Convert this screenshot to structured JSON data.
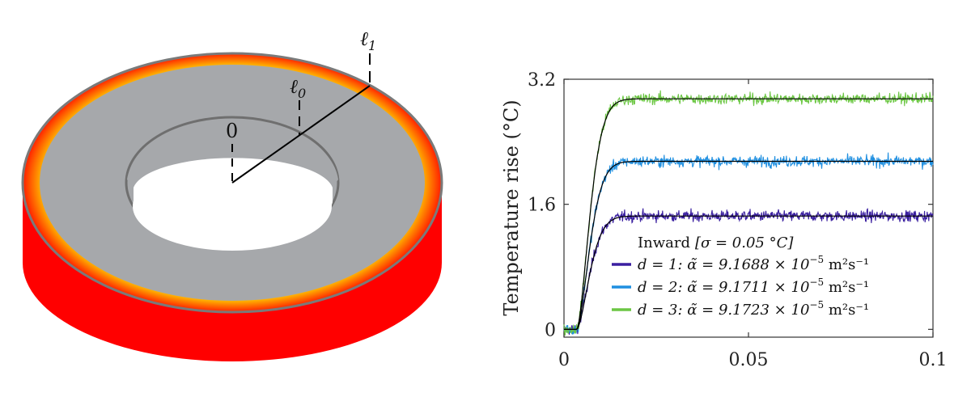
{
  "annotations": {
    "l1": "ℓ",
    "l1_sub": "1",
    "l0": "ℓ",
    "l0_sub": "0",
    "zero": "0"
  },
  "colors": {
    "d1": "#3a1fa0",
    "d2": "#1f8fe0",
    "d3": "#6cc644",
    "fit": "#000000",
    "disk_face": "#a6a8ab",
    "disk_side": "#ff0000",
    "ring_outer": "#ff5a00",
    "ring_inner": "#ffee44"
  },
  "chart_data": {
    "type": "line",
    "ylabel": "Temperature rise (°C)",
    "xlim": [
      0,
      0.1
    ],
    "ylim": [
      -0.1,
      3.2
    ],
    "xticks": [
      0,
      0.05,
      0.1
    ],
    "xtick_labels": [
      "0",
      "0.05",
      "0.1"
    ],
    "yticks": [
      0,
      1.6,
      3.2
    ],
    "ytick_labels": [
      "0",
      "1.6",
      "3.2"
    ],
    "legend": {
      "placement": "bottom-right",
      "title_prefix": "Inward",
      "title_sigma": "[σ = 0.05 °C]",
      "entries": [
        {
          "d": "d = 1:",
          "alpha": "α̃ = 9.1688 × 10",
          "exp": "−5",
          "unit": " m²s⁻¹"
        },
        {
          "d": "d = 2:",
          "alpha": "α̃ = 9.1711 × 10",
          "exp": "−5",
          "unit": " m²s⁻¹"
        },
        {
          "d": "d = 3:",
          "alpha": "α̃ = 9.1723 × 10",
          "exp": "−5",
          "unit": " m²s⁻¹"
        }
      ]
    },
    "series": [
      {
        "steady": 1.45,
        "t0": 0.0035,
        "tau": 0.0045
      },
      {
        "steady": 2.15,
        "t0": 0.0035,
        "tau": 0.0045
      },
      {
        "steady": 2.95,
        "t0": 0.0035,
        "tau": 0.0045
      }
    ],
    "noise_sigma": 0.05,
    "grid": false
  }
}
